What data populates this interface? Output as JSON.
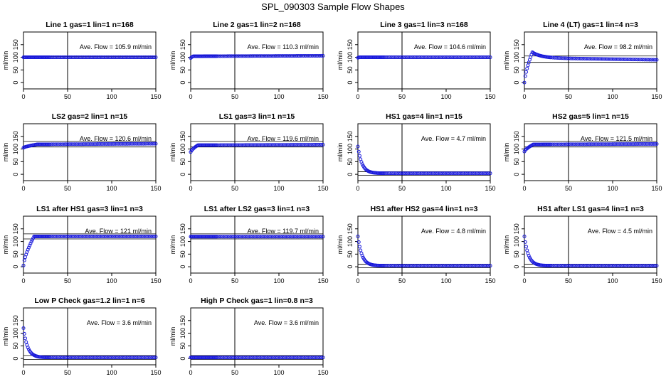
{
  "page_title": "SPL_090303  Sample Flow Shapes",
  "chart_data": [
    {
      "type": "scatter",
      "title": "Line 1 gas=1 lin=1 n=168",
      "ylabel": "ml/min",
      "annotation": "Ave. Flow =  105.9  ml/min",
      "xlim": [
        0,
        150
      ],
      "ylim": [
        -25,
        200
      ],
      "xticks": [
        0,
        50,
        100,
        150
      ],
      "yticks": [
        0,
        50,
        100,
        150
      ],
      "vline": 50,
      "hlines": [
        95,
        103
      ],
      "shape": {
        "start": 100,
        "peak": 100,
        "final": 100,
        "peak_x": 0,
        "settle": 1,
        "end_delta": 0
      }
    },
    {
      "type": "scatter",
      "title": "Line 2 gas=1 lin=2 n=168",
      "ylabel": "ml/min",
      "annotation": "Ave. Flow =  110.3  ml/min",
      "xlim": [
        0,
        150
      ],
      "ylim": [
        -25,
        200
      ],
      "xticks": [
        0,
        50,
        100,
        150
      ],
      "yticks": [
        0,
        50,
        100,
        150
      ],
      "vline": 50,
      "hlines": [
        106
      ],
      "shape": {
        "start": 97,
        "peak": 104,
        "final": 104,
        "peak_x": 3,
        "settle": 3,
        "end_delta": 2
      }
    },
    {
      "type": "scatter",
      "title": "Line 3 gas=1 lin=3 n=168",
      "ylabel": "ml/min",
      "annotation": "Ave. Flow =  104.6  ml/min",
      "xlim": [
        0,
        150
      ],
      "ylim": [
        -25,
        200
      ],
      "xticks": [
        0,
        50,
        100,
        150
      ],
      "yticks": [
        0,
        50,
        100,
        150
      ],
      "vline": 50,
      "hlines": [
        95,
        105
      ],
      "shape": {
        "start": 98,
        "peak": 100,
        "final": 100,
        "peak_x": 2,
        "settle": 2,
        "end_delta": 0
      }
    },
    {
      "type": "scatter",
      "title": "Line 4 (LT) gas=1 lin=4 n=3",
      "ylabel": "ml/min",
      "annotation": "Ave. Flow =  98.2  ml/min",
      "xlim": [
        0,
        150
      ],
      "ylim": [
        -25,
        200
      ],
      "xticks": [
        0,
        50,
        100,
        150
      ],
      "yticks": [
        0,
        50,
        100,
        150
      ],
      "vline": 50,
      "hlines": [
        80,
        105
      ],
      "shape": {
        "start": 0,
        "peak": 120,
        "final": 98,
        "peak_x": 9,
        "settle": 40,
        "end_delta": -8
      }
    },
    {
      "type": "scatter",
      "title": "LS2 gas=2 lin=1 n=15",
      "ylabel": "ml/min",
      "annotation": "Ave. Flow =  120.6  ml/min",
      "xlim": [
        0,
        150
      ],
      "ylim": [
        -25,
        200
      ],
      "xticks": [
        0,
        50,
        100,
        150
      ],
      "yticks": [
        0,
        50,
        100,
        150
      ],
      "vline": 50,
      "hlines": [
        108,
        130
      ],
      "shape": {
        "start": 105,
        "peak": 118,
        "final": 118,
        "peak_x": 15,
        "settle": 15,
        "end_delta": 3
      }
    },
    {
      "type": "scatter",
      "title": "LS1 gas=3 lin=1 n=15",
      "ylabel": "ml/min",
      "annotation": "Ave. Flow =  119.6  ml/min",
      "xlim": [
        0,
        150
      ],
      "ylim": [
        -25,
        200
      ],
      "xticks": [
        0,
        50,
        100,
        150
      ],
      "yticks": [
        0,
        50,
        100,
        150
      ],
      "vline": 50,
      "hlines": [
        108,
        130
      ],
      "shape": {
        "start": 88,
        "peak": 115,
        "final": 115,
        "peak_x": 8,
        "settle": 8,
        "end_delta": 2
      }
    },
    {
      "type": "scatter",
      "title": "HS1 gas=4 lin=1 n=15",
      "ylabel": "ml/min",
      "annotation": "Ave. Flow =  4.7  ml/min",
      "xlim": [
        0,
        150
      ],
      "ylim": [
        -25,
        200
      ],
      "xticks": [
        0,
        50,
        100,
        150
      ],
      "yticks": [
        0,
        50,
        100,
        150
      ],
      "vline": 50,
      "hlines": [
        -4,
        10
      ],
      "shape": {
        "start": 110,
        "peak": 110,
        "final": 4,
        "peak_x": 0,
        "settle": 14,
        "end_delta": 0
      }
    },
    {
      "type": "scatter",
      "title": "HS2 gas=5 lin=1 n=15",
      "ylabel": "ml/min",
      "annotation": "Ave. Flow =  121.5  ml/min",
      "xlim": [
        0,
        150
      ],
      "ylim": [
        -25,
        200
      ],
      "xticks": [
        0,
        50,
        100,
        150
      ],
      "yticks": [
        0,
        50,
        100,
        150
      ],
      "vline": 50,
      "hlines": [
        108,
        130
      ],
      "shape": {
        "start": 90,
        "peak": 118,
        "final": 118,
        "peak_x": 10,
        "settle": 10,
        "end_delta": 2
      }
    },
    {
      "type": "scatter",
      "title": "LS1 after HS1 gas=3 lin=1 n=3",
      "ylabel": "ml/min",
      "annotation": "Ave. Flow =  121  ml/min",
      "xlim": [
        0,
        150
      ],
      "ylim": [
        -25,
        200
      ],
      "xticks": [
        0,
        50,
        100,
        150
      ],
      "yticks": [
        0,
        50,
        100,
        150
      ],
      "vline": 50,
      "hlines": [
        110,
        130
      ],
      "shape": {
        "start": 5,
        "peak": 120,
        "final": 120,
        "peak_x": 12,
        "settle": 12,
        "end_delta": 0
      }
    },
    {
      "type": "scatter",
      "title": "LS1 after LS2 gas=3 lin=1 n=3",
      "ylabel": "ml/min",
      "annotation": "Ave. Flow =  119.7  ml/min",
      "xlim": [
        0,
        150
      ],
      "ylim": [
        -25,
        200
      ],
      "xticks": [
        0,
        50,
        100,
        150
      ],
      "yticks": [
        0,
        50,
        100,
        150
      ],
      "vline": 50,
      "hlines": [
        110,
        130
      ],
      "shape": {
        "start": 119,
        "peak": 119,
        "final": 119,
        "peak_x": 0,
        "settle": 1,
        "end_delta": 0
      }
    },
    {
      "type": "scatter",
      "title": "HS1 after HS2 gas=4 lin=1 n=3",
      "ylabel": "ml/min",
      "annotation": "Ave. Flow =  4.8  ml/min",
      "xlim": [
        0,
        150
      ],
      "ylim": [
        -25,
        200
      ],
      "xticks": [
        0,
        50,
        100,
        150
      ],
      "yticks": [
        0,
        50,
        100,
        150
      ],
      "vline": 50,
      "hlines": [
        -4,
        10
      ],
      "shape": {
        "start": 120,
        "peak": 120,
        "final": 4,
        "peak_x": 0,
        "settle": 14,
        "end_delta": 0
      }
    },
    {
      "type": "scatter",
      "title": "HS1 after LS1 gas=4 lin=1 n=3",
      "ylabel": "ml/min",
      "annotation": "Ave. Flow =  4.5  ml/min",
      "xlim": [
        0,
        150
      ],
      "ylim": [
        -25,
        200
      ],
      "xticks": [
        0,
        50,
        100,
        150
      ],
      "yticks": [
        0,
        50,
        100,
        150
      ],
      "vline": 50,
      "hlines": [
        -4,
        10
      ],
      "shape": {
        "start": 120,
        "peak": 120,
        "final": 4,
        "peak_x": 0,
        "settle": 14,
        "end_delta": 0
      }
    },
    {
      "type": "scatter",
      "title": "Low P Check gas=1.2 lin=1 n=6",
      "ylabel": "ml/min",
      "annotation": "Ave. Flow =  3.6  ml/min",
      "xlim": [
        0,
        150
      ],
      "ylim": [
        -25,
        200
      ],
      "xticks": [
        0,
        50,
        100,
        150
      ],
      "yticks": [
        0,
        50,
        100,
        150
      ],
      "vline": 50,
      "hlines": [
        -4,
        12
      ],
      "shape": {
        "start": 120,
        "peak": 120,
        "final": 4,
        "peak_x": 0,
        "settle": 14,
        "end_delta": 0
      }
    },
    {
      "type": "scatter",
      "title": "High P Check gas=1 lin=0.8 n=3",
      "ylabel": "ml/min",
      "annotation": "Ave. Flow =  3.6  ml/min",
      "xlim": [
        0,
        150
      ],
      "ylim": [
        -25,
        200
      ],
      "xticks": [
        0,
        50,
        100,
        150
      ],
      "yticks": [
        0,
        50,
        100,
        150
      ],
      "vline": 50,
      "hlines": [
        -4,
        12
      ],
      "shape": {
        "start": 4,
        "peak": 4,
        "final": 4,
        "peak_x": 0,
        "settle": 1,
        "end_delta": 0
      }
    }
  ],
  "colors": {
    "points": "#1a1adc",
    "axes": "#000000"
  }
}
